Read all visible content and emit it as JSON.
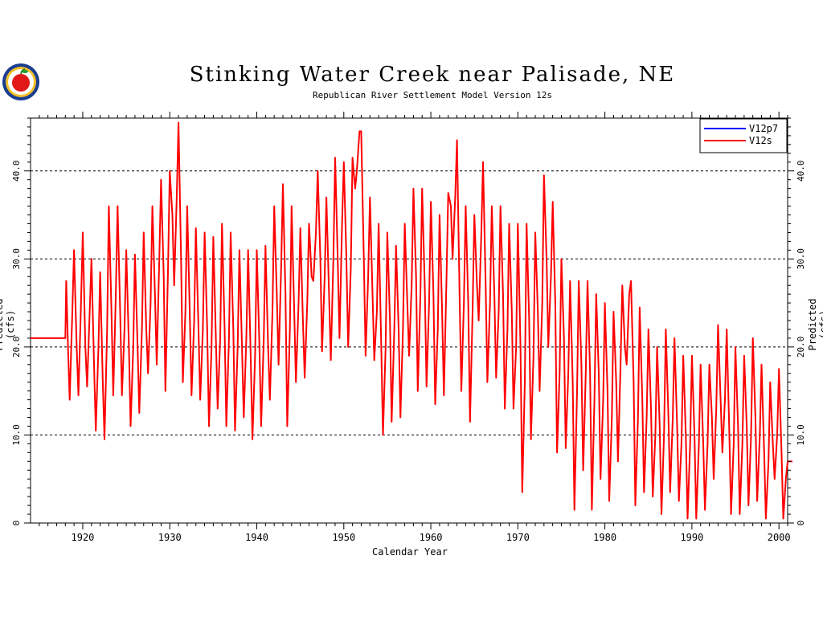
{
  "chart_data": {
    "type": "line",
    "title": "Stinking Water Creek near Palisade, NE",
    "subtitle": "Republican River Settlement Model Version 12s",
    "xlabel": "Calendar Year",
    "ylabel": "Predicted (cfs)",
    "xlim": [
      1914,
      2001
    ],
    "ylim": [
      0,
      46
    ],
    "x_ticks": [
      "1920",
      "1930",
      "1940",
      "1950",
      "1960",
      "1970",
      "1980",
      "1990",
      "2000"
    ],
    "y_ticks_left": [
      "0",
      "10.0",
      "20.0",
      "30.0",
      "40.0"
    ],
    "y_ticks_right": [
      "0",
      "10.0",
      "20.0",
      "30.0",
      "40.0"
    ],
    "grid": "horizontal dashed at 10, 20, 30, 40",
    "legend_position": "top-right",
    "series": [
      {
        "name": "V12p7",
        "color": "#0000ff",
        "x": [],
        "y": []
      },
      {
        "name": "V12s",
        "color": "#ff0000",
        "x": [
          1914.0,
          1918.0,
          1918.1,
          1918.3,
          1918.5,
          1918.8,
          1919.0,
          1919.3,
          1919.5,
          1919.8,
          1920.0,
          1920.3,
          1920.5,
          1920.8,
          1921.0,
          1921.3,
          1921.5,
          1921.8,
          1922.0,
          1922.3,
          1922.5,
          1922.8,
          1923.0,
          1923.3,
          1923.5,
          1923.8,
          1924.0,
          1924.3,
          1924.5,
          1924.8,
          1925.0,
          1925.3,
          1925.5,
          1925.8,
          1926.0,
          1926.3,
          1926.5,
          1926.8,
          1927.0,
          1927.3,
          1927.5,
          1927.8,
          1928.0,
          1928.3,
          1928.5,
          1928.8,
          1929.0,
          1929.3,
          1929.5,
          1929.8,
          1930.0,
          1930.3,
          1930.5,
          1930.8,
          1931.0,
          1931.3,
          1931.5,
          1931.8,
          1932.0,
          1932.3,
          1932.5,
          1932.8,
          1933.0,
          1933.3,
          1933.5,
          1933.8,
          1934.0,
          1934.3,
          1934.5,
          1934.8,
          1935.0,
          1935.3,
          1935.5,
          1935.8,
          1936.0,
          1936.3,
          1936.5,
          1936.8,
          1937.0,
          1937.3,
          1937.5,
          1937.8,
          1938.0,
          1938.3,
          1938.5,
          1938.8,
          1939.0,
          1939.3,
          1939.5,
          1939.8,
          1940.0,
          1940.3,
          1940.5,
          1940.8,
          1941.0,
          1941.3,
          1941.5,
          1941.8,
          1942.0,
          1942.3,
          1942.5,
          1942.8,
          1943.0,
          1943.3,
          1943.5,
          1943.8,
          1944.0,
          1944.3,
          1944.5,
          1944.8,
          1945.0,
          1945.3,
          1945.5,
          1945.8,
          1946.0,
          1946.3,
          1946.5,
          1946.8,
          1947.0,
          1947.3,
          1947.5,
          1947.8,
          1948.0,
          1948.3,
          1948.5,
          1948.8,
          1949.0,
          1949.3,
          1949.5,
          1949.8,
          1950.0,
          1950.3,
          1950.5,
          1950.8,
          1951.0,
          1951.3,
          1951.5,
          1951.8,
          1952.0,
          1952.3,
          1952.5,
          1952.8,
          1953.0,
          1953.3,
          1953.5,
          1953.8,
          1954.0,
          1954.3,
          1954.5,
          1954.8,
          1955.0,
          1955.3,
          1955.5,
          1955.8,
          1956.0,
          1956.3,
          1956.5,
          1956.8,
          1957.0,
          1957.3,
          1957.5,
          1957.8,
          1958.0,
          1958.3,
          1958.5,
          1958.8,
          1959.0,
          1959.3,
          1959.5,
          1959.8,
          1960.0,
          1960.3,
          1960.5,
          1960.8,
          1961.0,
          1961.3,
          1961.5,
          1961.8,
          1962.0,
          1962.3,
          1962.5,
          1962.8,
          1963.0,
          1963.3,
          1963.5,
          1963.8,
          1964.0,
          1964.3,
          1964.5,
          1964.8,
          1965.0,
          1965.3,
          1965.5,
          1965.8,
          1966.0,
          1966.3,
          1966.5,
          1966.8,
          1967.0,
          1967.3,
          1967.5,
          1967.8,
          1968.0,
          1968.3,
          1968.5,
          1968.8,
          1969.0,
          1969.3,
          1969.5,
          1969.8,
          1970.0,
          1970.3,
          1970.5,
          1970.8,
          1971.0,
          1971.3,
          1971.5,
          1971.8,
          1972.0,
          1972.3,
          1972.5,
          1972.8,
          1973.0,
          1973.3,
          1973.5,
          1973.8,
          1974.0,
          1974.3,
          1974.5,
          1974.8,
          1975.0,
          1975.3,
          1975.5,
          1975.8,
          1976.0,
          1976.3,
          1976.5,
          1976.8,
          1977.0,
          1977.3,
          1977.5,
          1977.8,
          1978.0,
          1978.3,
          1978.5,
          1978.8,
          1979.0,
          1979.3,
          1979.5,
          1979.8,
          1980.0,
          1980.3,
          1980.5,
          1980.8,
          1981.0,
          1981.3,
          1981.5,
          1981.8,
          1982.0,
          1982.3,
          1982.5,
          1982.8,
          1983.0,
          1983.3,
          1983.5,
          1983.8,
          1984.0,
          1984.3,
          1984.5,
          1984.8,
          1985.0,
          1985.3,
          1985.5,
          1985.8,
          1986.0,
          1986.3,
          1986.5,
          1986.8,
          1987.0,
          1987.3,
          1987.5,
          1987.8,
          1988.0,
          1988.3,
          1988.5,
          1988.8,
          1989.0,
          1989.3,
          1989.5,
          1989.8,
          1990.0,
          1990.3,
          1990.5,
          1990.8,
          1991.0,
          1991.3,
          1991.5,
          1991.8,
          1992.0,
          1992.3,
          1992.5,
          1992.8,
          1993.0,
          1993.3,
          1993.5,
          1993.8,
          1994.0,
          1994.3,
          1994.5,
          1994.8,
          1995.0,
          1995.3,
          1995.5,
          1995.8,
          1996.0,
          1996.3,
          1996.5,
          1996.8,
          1997.0,
          1997.3,
          1997.5,
          1997.8,
          1998.0,
          1998.3,
          1998.5,
          1998.8,
          1999.0,
          1999.3,
          1999.5,
          1999.8,
          2000.0,
          2000.3,
          2000.5,
          2000.8,
          2001.0
        ],
        "y": [
          21.0,
          21.0,
          27.5,
          20.0,
          14.0,
          24.0,
          31.0,
          20.0,
          14.5,
          25.0,
          33.0,
          20.0,
          15.5,
          24.0,
          30.0,
          18.0,
          10.5,
          20.0,
          28.5,
          16.0,
          9.5,
          22.0,
          36.0,
          24.0,
          14.5,
          26.0,
          36.0,
          24.0,
          14.5,
          22.0,
          31.0,
          20.0,
          11.0,
          20.0,
          30.5,
          20.0,
          12.5,
          22.0,
          33.0,
          22.0,
          17.0,
          25.0,
          36.0,
          26.0,
          18.0,
          30.0,
          39.0,
          28.0,
          15.0,
          29.0,
          40.0,
          35.0,
          27.0,
          37.0,
          45.5,
          30.0,
          16.0,
          24.0,
          36.0,
          24.0,
          14.5,
          23.0,
          33.5,
          22.0,
          14.0,
          22.0,
          33.0,
          22.0,
          11.0,
          20.0,
          32.5,
          21.0,
          13.0,
          21.0,
          34.0,
          22.0,
          11.0,
          21.0,
          33.0,
          22.0,
          10.5,
          20.0,
          31.0,
          20.0,
          12.0,
          21.0,
          31.0,
          19.0,
          9.5,
          19.0,
          31.0,
          20.0,
          11.0,
          21.0,
          31.5,
          20.0,
          14.0,
          24.0,
          36.0,
          26.0,
          18.0,
          29.0,
          38.5,
          26.0,
          11.0,
          22.0,
          36.0,
          24.0,
          16.0,
          25.0,
          33.5,
          23.0,
          16.5,
          25.0,
          34.0,
          28.0,
          27.5,
          33.0,
          40.0,
          30.0,
          19.5,
          28.0,
          37.0,
          26.0,
          18.5,
          30.0,
          41.5,
          30.0,
          21.0,
          34.0,
          41.0,
          30.0,
          20.0,
          29.0,
          41.5,
          38.0,
          40.0,
          44.5,
          44.5,
          30.0,
          19.0,
          28.0,
          37.0,
          26.0,
          18.5,
          24.0,
          34.0,
          20.0,
          10.0,
          20.0,
          33.0,
          23.0,
          11.5,
          22.0,
          31.5,
          22.0,
          12.0,
          22.0,
          34.0,
          25.0,
          19.0,
          27.0,
          38.0,
          28.0,
          15.0,
          26.0,
          38.0,
          27.0,
          15.5,
          25.0,
          36.5,
          26.0,
          13.5,
          22.0,
          35.0,
          24.0,
          14.5,
          28.0,
          37.5,
          36.0,
          30.0,
          37.0,
          43.5,
          26.0,
          15.0,
          25.0,
          36.0,
          25.0,
          11.5,
          24.0,
          35.0,
          27.0,
          23.0,
          33.0,
          41.0,
          27.0,
          16.0,
          25.0,
          36.0,
          26.0,
          16.5,
          24.0,
          36.0,
          26.0,
          13.0,
          22.0,
          34.0,
          24.0,
          13.0,
          20.0,
          34.0,
          20.0,
          3.5,
          16.0,
          34.0,
          23.0,
          9.5,
          19.0,
          33.0,
          24.0,
          15.0,
          25.0,
          39.5,
          30.0,
          20.0,
          28.0,
          36.5,
          25.0,
          8.0,
          17.0,
          30.0,
          21.0,
          8.5,
          17.0,
          27.5,
          16.0,
          1.5,
          15.0,
          27.5,
          18.0,
          6.0,
          17.0,
          27.5,
          17.0,
          1.5,
          14.0,
          26.0,
          17.0,
          5.0,
          14.0,
          25.0,
          15.0,
          2.5,
          12.0,
          24.0,
          16.0,
          7.0,
          18.0,
          27.0,
          20.0,
          18.0,
          26.0,
          27.5,
          16.0,
          2.0,
          12.0,
          24.5,
          14.0,
          3.5,
          12.0,
          22.0,
          13.0,
          3.0,
          10.0,
          20.0,
          11.0,
          1.0,
          10.0,
          22.0,
          12.0,
          3.5,
          12.0,
          21.0,
          11.0,
          2.5,
          9.0,
          19.0,
          10.0,
          0.5,
          9.0,
          19.0,
          10.0,
          0.5,
          9.0,
          18.0,
          9.0,
          1.5,
          9.0,
          18.0,
          12.0,
          5.0,
          13.0,
          22.5,
          14.0,
          8.0,
          14.0,
          22.0,
          10.0,
          1.0,
          9.0,
          20.0,
          11.0,
          1.0,
          9.0,
          19.0,
          11.0,
          2.0,
          10.0,
          21.0,
          12.0,
          2.5,
          10.0,
          18.0,
          8.0,
          0.5,
          7.0,
          16.0,
          9.0,
          5.0,
          10.0,
          17.5,
          8.0,
          0.5,
          5.0,
          7.0
        ]
      }
    ]
  },
  "legend": {
    "items": [
      {
        "label": "V12p7",
        "color": "#0000ff"
      },
      {
        "label": "V12s",
        "color": "#ff0000"
      }
    ]
  },
  "logo": {
    "icon": "apple-seal-logo"
  }
}
